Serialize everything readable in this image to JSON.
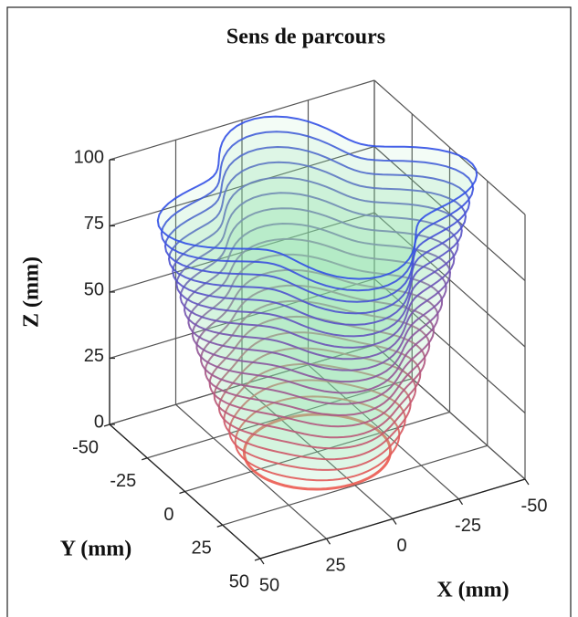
{
  "chart_data": {
    "type": "surface3d",
    "title": "Sens de parcours",
    "xlabel": "X (mm)",
    "ylabel": "Y (mm)",
    "zlabel": "Z (mm)",
    "xlim": [
      -50,
      50
    ],
    "ylim": [
      -50,
      50
    ],
    "zlim": [
      0,
      100
    ],
    "xticks": [
      -50,
      -25,
      0,
      25,
      50
    ],
    "yticks": [
      -50,
      -25,
      0,
      25,
      50
    ],
    "zticks": [
      0,
      25,
      50,
      75,
      100
    ],
    "grid": true
  }
}
